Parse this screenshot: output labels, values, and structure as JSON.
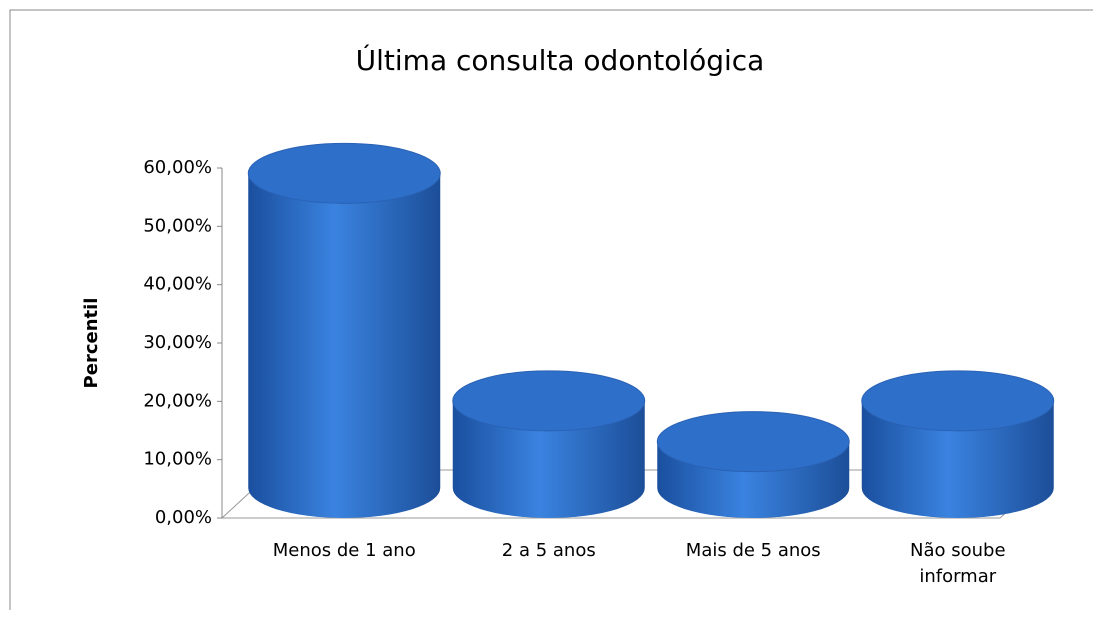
{
  "chart_data": {
    "type": "bar3d",
    "title": "Última consulta odontológica",
    "y_label": "Percentil",
    "categories": [
      "Menos de 1 ano",
      "2 a 5  anos",
      "Mais de 5 anos",
      "Não soube informar"
    ],
    "values": [
      56,
      17,
      10,
      17
    ],
    "color": "#2e6fc9",
    "ylim": [
      0,
      60
    ],
    "yticks": [
      {
        "value": 0,
        "label": "0,00%"
      },
      {
        "value": 10,
        "label": "10,00%"
      },
      {
        "value": 20,
        "label": "20,00%"
      },
      {
        "value": 30,
        "label": "30,00%"
      },
      {
        "value": 40,
        "label": "40,00%"
      },
      {
        "value": 50,
        "label": "50,00%"
      },
      {
        "value": 60,
        "label": "60,00%"
      }
    ]
  }
}
